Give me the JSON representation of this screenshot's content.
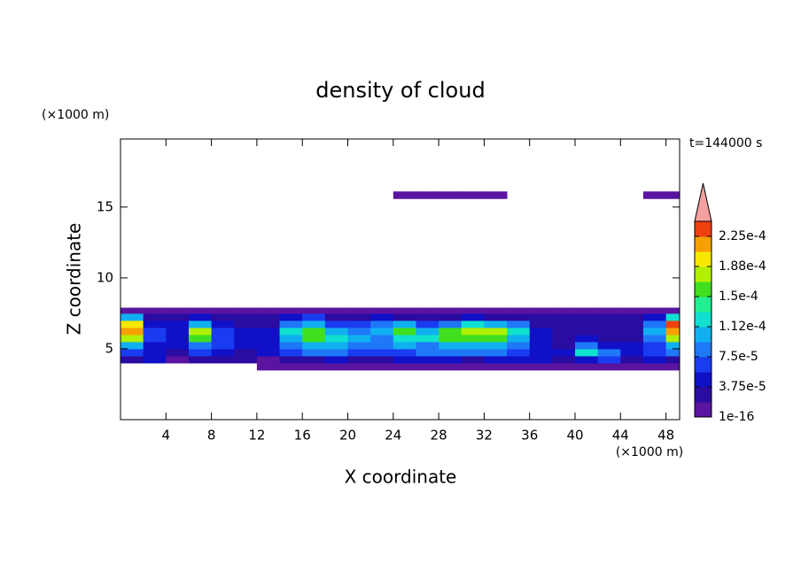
{
  "chart_data": {
    "type": "contour",
    "title": "density of cloud",
    "x_label": "X coordinate",
    "y_label": "Z coordinate",
    "x_unit": "(×1000 m)",
    "y_unit": "(×1000 m)",
    "time_label": "t=144000 s",
    "xlim": [
      0,
      49.2
    ],
    "ylim": [
      0,
      19.8
    ],
    "xticks": [
      4,
      8,
      12,
      16,
      20,
      24,
      28,
      32,
      36,
      40,
      44,
      48
    ],
    "yticks": [
      5,
      10,
      15
    ],
    "x_edges": [
      0,
      2,
      4,
      6,
      8,
      10,
      12,
      14,
      16,
      18,
      20,
      22,
      24,
      26,
      28,
      30,
      32,
      34,
      36,
      38,
      40,
      42,
      44,
      46,
      48,
      50
    ],
    "z_edges": [
      3.5,
      4,
      4.5,
      5,
      5.5,
      6,
      6.5,
      7,
      7.5,
      7.9,
      15.6,
      16.1
    ],
    "density": [
      [
        null,
        null,
        null,
        null,
        null,
        null,
        1e-05,
        1e-05,
        1e-05,
        1e-05,
        1e-05,
        1e-05,
        1e-05,
        1e-05,
        1e-05,
        1e-05,
        1e-05,
        1e-05,
        1e-05,
        1e-05,
        1e-05,
        1e-05,
        1e-05,
        1e-05,
        1e-05
      ],
      [
        3e-05,
        5e-05,
        1e-05,
        3e-05,
        3e-05,
        3e-05,
        1e-05,
        3e-05,
        3e-05,
        5e-05,
        3e-05,
        3e-05,
        5e-05,
        5e-05,
        5e-05,
        3e-05,
        5e-05,
        5e-05,
        5e-05,
        3e-05,
        5e-05,
        7e-05,
        3e-05,
        5e-05,
        3e-05
      ],
      [
        7e-05,
        5e-05,
        3e-05,
        7e-05,
        5e-05,
        3e-05,
        5e-05,
        7e-05,
        9e-05,
        9e-05,
        7e-05,
        7e-05,
        7e-05,
        9e-05,
        9e-05,
        9e-05,
        9e-05,
        7e-05,
        5e-05,
        5e-05,
        0.00013,
        9e-05,
        5e-05,
        7e-05,
        9e-05
      ],
      [
        0.00011,
        5e-05,
        5e-05,
        9e-05,
        7e-05,
        5e-05,
        5e-05,
        9e-05,
        0.00011,
        0.00011,
        9e-05,
        9e-05,
        0.00011,
        9e-05,
        0.00011,
        0.00011,
        0.00011,
        9e-05,
        5e-05,
        3e-05,
        9e-05,
        5e-05,
        5e-05,
        7e-05,
        0.00011
      ],
      [
        0.00017,
        7e-05,
        5e-05,
        0.00015,
        7e-05,
        5e-05,
        5e-05,
        0.00011,
        0.00015,
        0.00013,
        0.00011,
        9e-05,
        0.00013,
        0.00013,
        0.00015,
        0.00015,
        0.00015,
        0.00011,
        5e-05,
        3e-05,
        5e-05,
        3e-05,
        3e-05,
        9e-05,
        0.00017
      ],
      [
        0.00021,
        7e-05,
        5e-05,
        0.00017,
        7e-05,
        5e-05,
        5e-05,
        0.00013,
        0.00015,
        0.00011,
        9e-05,
        0.00011,
        0.00015,
        0.00011,
        0.00015,
        0.00017,
        0.00017,
        0.00013,
        5e-05,
        3e-05,
        3e-05,
        3e-05,
        3e-05,
        0.00011,
        0.00021
      ],
      [
        0.00019,
        5e-05,
        5e-05,
        0.00011,
        5e-05,
        3e-05,
        3e-05,
        9e-05,
        0.00011,
        7e-05,
        7e-05,
        9e-05,
        0.00011,
        7e-05,
        9e-05,
        0.00013,
        0.00011,
        9e-05,
        3e-05,
        3e-05,
        3e-05,
        3e-05,
        3e-05,
        9e-05,
        0.00023
      ],
      [
        0.00011,
        3e-05,
        3e-05,
        5e-05,
        3e-05,
        3e-05,
        3e-05,
        5e-05,
        7e-05,
        3e-05,
        3e-05,
        5e-05,
        3e-05,
        3e-05,
        3e-05,
        5e-05,
        3e-05,
        3e-05,
        3e-05,
        3e-05,
        3e-05,
        3e-05,
        3e-05,
        5e-05,
        0.00013
      ],
      [
        1e-05,
        1e-05,
        1e-05,
        1e-05,
        1e-05,
        1e-05,
        1e-05,
        1e-05,
        1e-05,
        1e-05,
        1e-05,
        1e-05,
        1e-05,
        1e-05,
        1e-05,
        1e-05,
        1e-05,
        1e-05,
        1e-05,
        1e-05,
        1e-05,
        1e-05,
        1e-05,
        1e-05,
        1e-05
      ],
      [
        null,
        null,
        null,
        null,
        null,
        null,
        null,
        null,
        null,
        null,
        null,
        null,
        null,
        null,
        null,
        null,
        null,
        null,
        null,
        null,
        null,
        null,
        null,
        null,
        null
      ],
      [
        null,
        null,
        null,
        null,
        null,
        null,
        null,
        null,
        null,
        null,
        null,
        null,
        1e-05,
        1e-05,
        1e-05,
        1e-05,
        1e-05,
        null,
        null,
        null,
        null,
        null,
        null,
        1e-05,
        1e-05
      ]
    ],
    "colorbar": {
      "levels": [
        1e-16,
        1.875e-05,
        3.75e-05,
        5.625e-05,
        7.5e-05,
        9.375e-05,
        0.0001125,
        0.00013125,
        0.00015,
        0.00016875,
        0.0001875,
        0.00020625,
        0.000225,
        0.00024375
      ],
      "colors": [
        "#5a14a0",
        "#2a0ca0",
        "#1010c8",
        "#1a3cf0",
        "#1e78f8",
        "#10b0f0",
        "#10e0d0",
        "#20f090",
        "#40e020",
        "#b0f000",
        "#f8e800",
        "#f8a000",
        "#f04010"
      ],
      "extend_color": "#f4a0a0",
      "ticks": [
        {
          "value": 1e-16,
          "label": "1e-16"
        },
        {
          "value": 3.75e-05,
          "label": "3.75e-5"
        },
        {
          "value": 7.5e-05,
          "label": "7.5e-5"
        },
        {
          "value": 0.0001125,
          "label": "1.12e-4"
        },
        {
          "value": 0.00015,
          "label": "1.5e-4"
        },
        {
          "value": 0.0001875,
          "label": "1.88e-4"
        },
        {
          "value": 0.000225,
          "label": "2.25e-4"
        }
      ]
    }
  }
}
